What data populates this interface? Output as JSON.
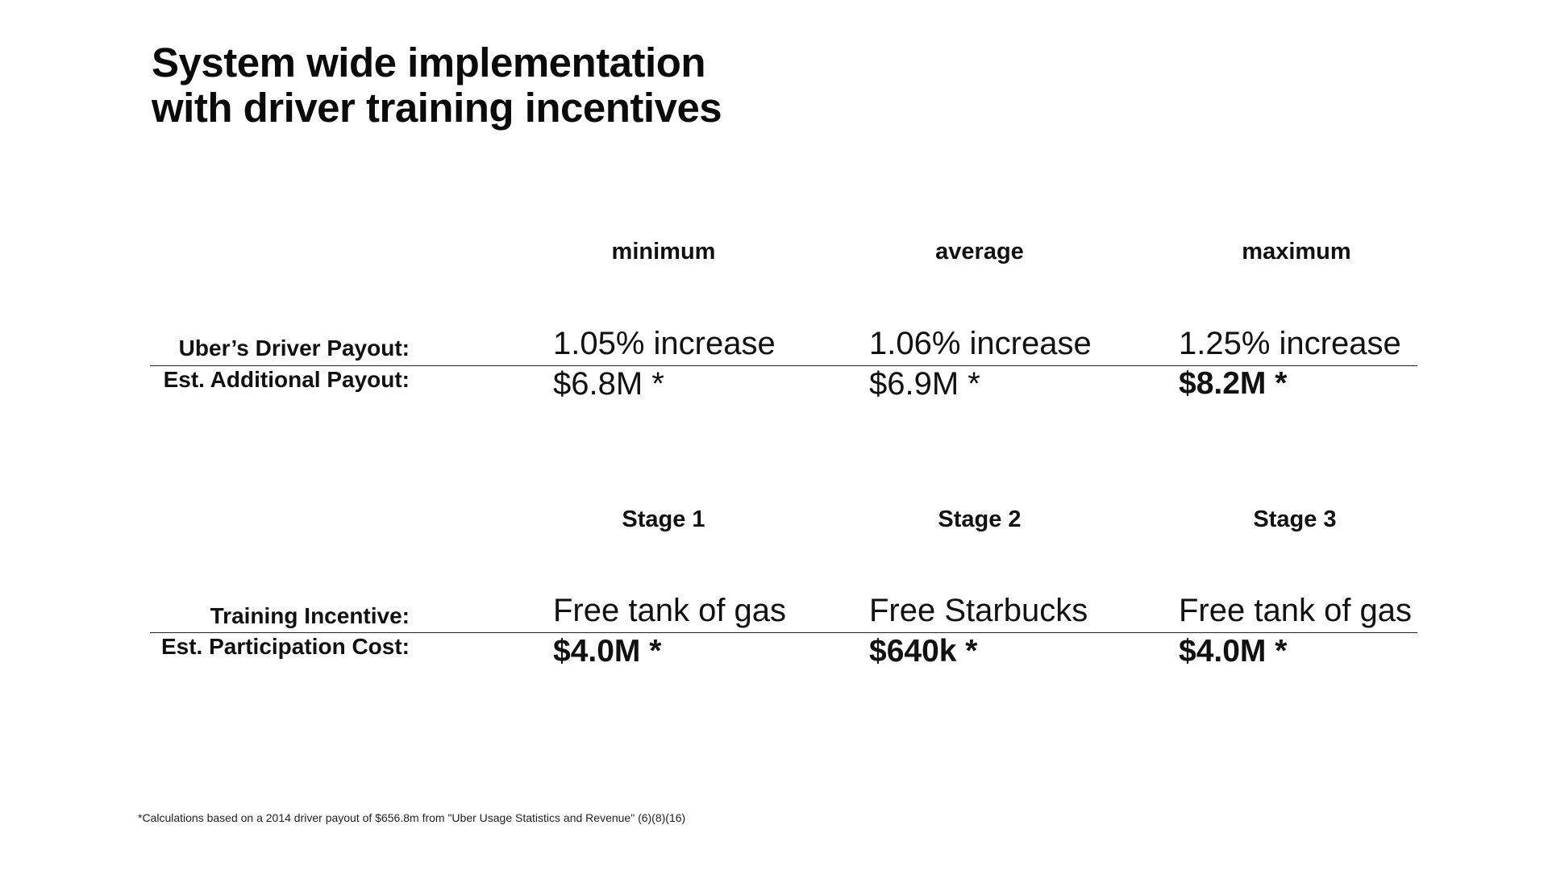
{
  "title": {
    "line1": "System wide implementation",
    "line2": "with driver training incentives"
  },
  "payout_table": {
    "headers": [
      "minimum",
      "average",
      "maximum"
    ],
    "rows": [
      {
        "label": "Uber’s Driver Payout:",
        "cells": [
          "1.05% increase",
          "1.06% increase",
          "1.25% increase"
        ]
      },
      {
        "label": "Est. Additional Payout:",
        "cells": [
          "$6.8M *",
          "$6.9M *",
          "$8.2M *"
        ]
      }
    ]
  },
  "incentive_table": {
    "headers": [
      "Stage 1",
      "Stage 2",
      "Stage 3"
    ],
    "rows": [
      {
        "label": "Training Incentive:",
        "cells": [
          "Free tank of gas",
          "Free Starbucks",
          "Free tank of gas"
        ]
      },
      {
        "label": "Est. Participation Cost:",
        "cells": [
          "$4.0M *",
          "$640k *",
          "$4.0M *"
        ]
      }
    ]
  },
  "footnote": "*Calculations based on a 2014 driver payout of $656.8m from \"Uber Usage Statistics and Revenue\" (6)(8)(16)"
}
